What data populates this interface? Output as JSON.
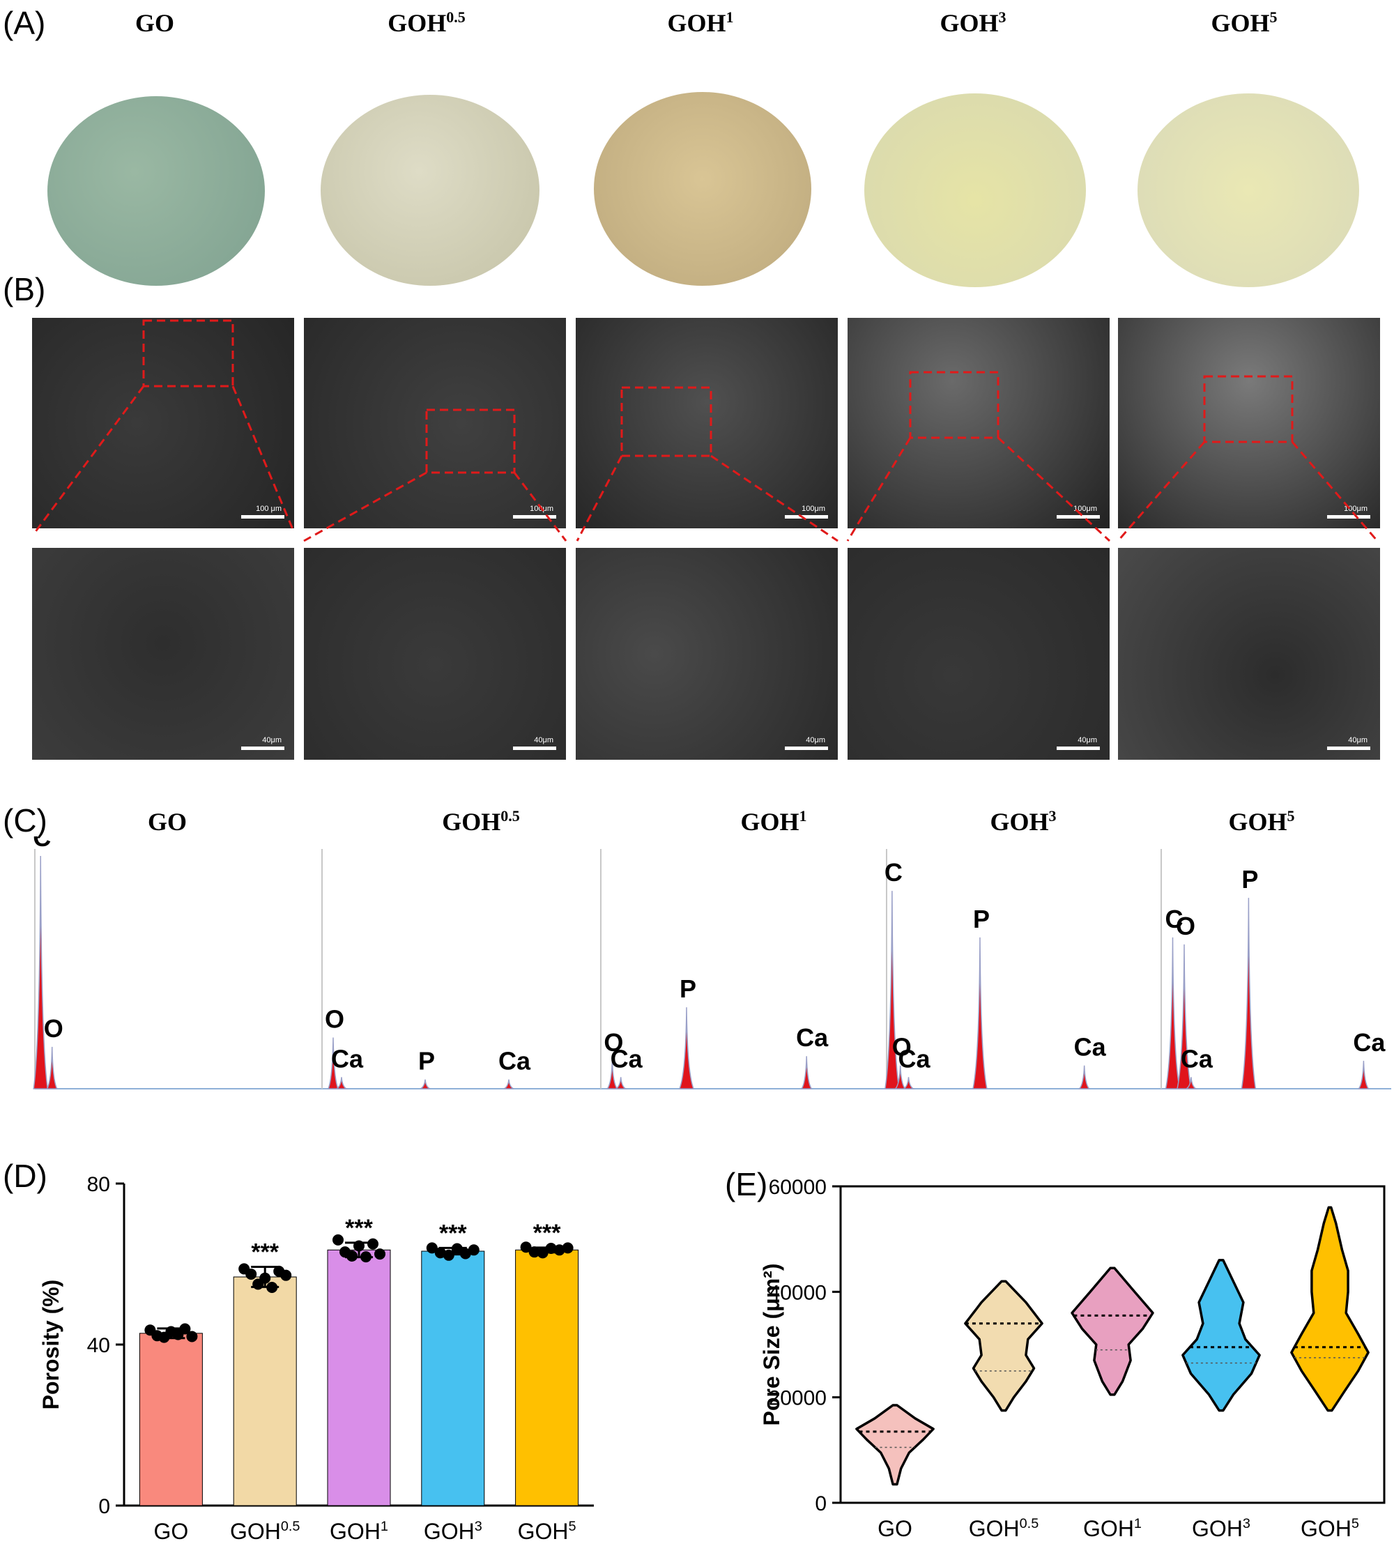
{
  "panels": {
    "a": "(A)",
    "b": "(B)",
    "c": "(C)",
    "d": "(D)",
    "e": "(E)"
  },
  "sample_names": [
    {
      "base": "GO",
      "sup": ""
    },
    {
      "base": "GOH",
      "sup": "0.5"
    },
    {
      "base": "GOH",
      "sup": "1"
    },
    {
      "base": "GOH",
      "sup": "3"
    },
    {
      "base": "GOH",
      "sup": "5"
    }
  ],
  "photo_colors": [
    "#8fb09a",
    "#d4d2b8",
    "#d4c08f",
    "#e0e0a4",
    "#e8e6b2"
  ],
  "sem_scalebars": {
    "top": [
      "100 μm",
      "100μm",
      "100μm",
      "100μm",
      "100μm"
    ],
    "bottom": [
      "40μm",
      "40μm",
      "40μm",
      "40μm",
      "40μm"
    ]
  },
  "edx_spectra": [
    {
      "sample": "GO",
      "peaks": [
        {
          "label": "C",
          "height": 1.0
        },
        {
          "label": "O",
          "height": 0.18
        }
      ]
    },
    {
      "sample": "GOH0.5",
      "peaks": [
        {
          "label": "O",
          "height": 0.22
        },
        {
          "label": "Ca",
          "height": 0.05
        },
        {
          "label": "P",
          "height": 0.04
        },
        {
          "label": "Ca",
          "height": 0.04
        }
      ]
    },
    {
      "sample": "GOH1",
      "peaks": [
        {
          "label": "O",
          "height": 0.12
        },
        {
          "label": "Ca",
          "height": 0.05
        },
        {
          "label": "P",
          "height": 0.35
        },
        {
          "label": "Ca",
          "height": 0.14
        }
      ]
    },
    {
      "sample": "GOH3",
      "peaks": [
        {
          "label": "C",
          "height": 0.85
        },
        {
          "label": "O",
          "height": 0.1
        },
        {
          "label": "Ca",
          "height": 0.05
        },
        {
          "label": "P",
          "height": 0.65
        },
        {
          "label": "Ca",
          "height": 0.1
        }
      ]
    },
    {
      "sample": "GOH5",
      "peaks": [
        {
          "label": "C",
          "height": 0.65
        },
        {
          "label": "O",
          "height": 0.62
        },
        {
          "label": "Ca",
          "height": 0.05
        },
        {
          "label": "P",
          "height": 0.82
        },
        {
          "label": "Ca",
          "height": 0.12
        }
      ]
    }
  ],
  "chart_data": [
    {
      "type": "bar",
      "panel": "(D)",
      "ylabel": "Porosity (%)",
      "ylim": [
        0,
        80
      ],
      "yticks": [
        0,
        40,
        80
      ],
      "categories": [
        "GO",
        "GOH0.5",
        "GOH1",
        "GOH3",
        "GOH5"
      ],
      "values": [
        42.8,
        56.8,
        63.5,
        63.2,
        63.5
      ],
      "errors": [
        1.2,
        2.5,
        1.8,
        0.8,
        0.6
      ],
      "colors": [
        "#f9897d",
        "#f2d9a6",
        "#d98ee8",
        "#47c1f0",
        "#ffc000"
      ],
      "significance": [
        "",
        "***",
        "***",
        "***",
        "***"
      ],
      "points": [
        [
          43.6,
          42.2,
          41.8,
          43.2,
          42.5,
          43.9,
          42.0
        ],
        [
          58.8,
          57.5,
          55.0,
          56.5,
          54.2,
          58.2,
          57.2
        ],
        [
          66.0,
          63.0,
          62.0,
          64.5,
          61.8,
          65.0,
          62.5
        ],
        [
          64.0,
          62.8,
          62.2,
          63.8,
          62.6,
          63.5
        ],
        [
          64.2,
          63.0,
          62.8,
          63.9,
          63.5,
          64.0
        ]
      ]
    },
    {
      "type": "violin",
      "panel": "(E)",
      "ylabel": "Pore Size (μm²)",
      "ylim": [
        0,
        60000
      ],
      "yticks": [
        0,
        20000,
        40000,
        60000
      ],
      "categories": [
        "GO",
        "GOH0.5",
        "GOH1",
        "GOH3",
        "GOH5"
      ],
      "colors": [
        "#f5c1bd",
        "#f2dcb0",
        "#e8a0c0",
        "#47c1f0",
        "#ffc000"
      ],
      "violins": [
        {
          "min": 3500,
          "max": 18500,
          "median": 13500,
          "q1": 10500,
          "profile": [
            [
              3500,
              0.05
            ],
            [
              6500,
              0.15
            ],
            [
              9500,
              0.35
            ],
            [
              12000,
              0.7
            ],
            [
              14000,
              0.95
            ],
            [
              16000,
              0.5
            ],
            [
              18500,
              0.05
            ]
          ]
        },
        {
          "min": 17500,
          "max": 42000,
          "median": 34000,
          "q1": 25000,
          "profile": [
            [
              17500,
              0.05
            ],
            [
              20000,
              0.25
            ],
            [
              23000,
              0.55
            ],
            [
              25500,
              0.75
            ],
            [
              28000,
              0.55
            ],
            [
              31000,
              0.6
            ],
            [
              34000,
              0.95
            ],
            [
              38000,
              0.55
            ],
            [
              42000,
              0.05
            ]
          ]
        },
        {
          "min": 20500,
          "max": 44500,
          "median": 35500,
          "q1": 29000,
          "profile": [
            [
              20500,
              0.05
            ],
            [
              23000,
              0.25
            ],
            [
              27000,
              0.45
            ],
            [
              30000,
              0.4
            ],
            [
              33000,
              0.75
            ],
            [
              36000,
              1.0
            ],
            [
              40000,
              0.55
            ],
            [
              44500,
              0.05
            ]
          ]
        },
        {
          "min": 17500,
          "max": 46000,
          "median": 29500,
          "q1": 26500,
          "profile": [
            [
              17500,
              0.05
            ],
            [
              20500,
              0.3
            ],
            [
              24500,
              0.75
            ],
            [
              28000,
              0.95
            ],
            [
              31000,
              0.6
            ],
            [
              34000,
              0.45
            ],
            [
              38000,
              0.55
            ],
            [
              42000,
              0.3
            ],
            [
              46000,
              0.05
            ]
          ]
        },
        {
          "min": 17500,
          "max": 56000,
          "median": 29500,
          "q1": 27500,
          "profile": [
            [
              17500,
              0.05
            ],
            [
              21000,
              0.35
            ],
            [
              25000,
              0.7
            ],
            [
              28500,
              0.95
            ],
            [
              32000,
              0.7
            ],
            [
              36000,
              0.4
            ],
            [
              40000,
              0.45
            ],
            [
              44000,
              0.45
            ],
            [
              48000,
              0.3
            ],
            [
              53000,
              0.15
            ],
            [
              56000,
              0.03
            ]
          ]
        }
      ]
    }
  ]
}
